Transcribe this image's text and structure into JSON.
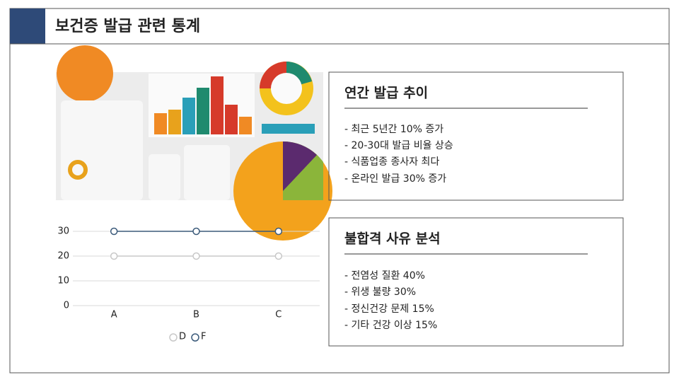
{
  "header": {
    "title": "보건증 발급 관련 통계"
  },
  "panels": [
    {
      "heading": "연간 발급 추이",
      "bullets": [
        "- 최근 5년간 10% 증가",
        "- 20-30대 발급 비율 상승",
        "- 식품업종 종사자 최다",
        "- 온라인 발급 30% 증가"
      ]
    },
    {
      "heading": "불합격 사유 분석",
      "bullets": [
        "- 전염성 질환 40%",
        "- 위생 불량 30%",
        "- 정신건강 문제 15%",
        "- 기타 건강 이상 15%"
      ]
    }
  ],
  "chart_data": {
    "type": "line",
    "categories": [
      "A",
      "B",
      "C"
    ],
    "series": [
      {
        "name": "D",
        "color": "#c8c8c8",
        "values": [
          20,
          20,
          20
        ]
      },
      {
        "name": "F",
        "color": "#3b5a7a",
        "values": [
          30,
          30,
          30
        ]
      }
    ],
    "ylim": [
      0,
      30
    ],
    "yticks": [
      0,
      10,
      20,
      30
    ],
    "grid": true,
    "legend": "bottom"
  }
}
